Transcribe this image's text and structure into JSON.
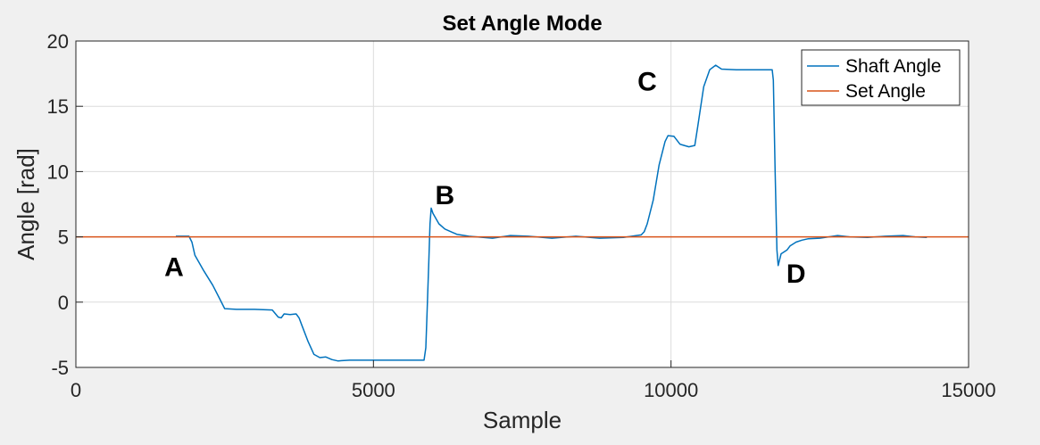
{
  "chart_data": {
    "type": "line",
    "title": "Set Angle Mode",
    "xlabel": "Sample",
    "ylabel": "Angle [rad]",
    "xlim": [
      0,
      15000
    ],
    "ylim": [
      -5,
      20
    ],
    "xticks": [
      0,
      5000,
      10000,
      15000
    ],
    "yticks": [
      -5,
      0,
      5,
      10,
      15,
      20
    ],
    "grid": true,
    "legend_position": "top-right",
    "series": [
      {
        "name": "Shaft Angle",
        "color": "#0072BD",
        "points": [
          [
            1680,
            5.05
          ],
          [
            1900,
            5.05
          ],
          [
            1950,
            4.6
          ],
          [
            2000,
            3.6
          ],
          [
            2150,
            2.4
          ],
          [
            2300,
            1.3
          ],
          [
            2400,
            0.4
          ],
          [
            2500,
            -0.5
          ],
          [
            2700,
            -0.55
          ],
          [
            3000,
            -0.55
          ],
          [
            3300,
            -0.6
          ],
          [
            3400,
            -1.15
          ],
          [
            3450,
            -1.2
          ],
          [
            3500,
            -0.9
          ],
          [
            3600,
            -0.95
          ],
          [
            3700,
            -0.9
          ],
          [
            3750,
            -1.2
          ],
          [
            3800,
            -1.8
          ],
          [
            3900,
            -3.0
          ],
          [
            4000,
            -4.0
          ],
          [
            4100,
            -4.25
          ],
          [
            4200,
            -4.2
          ],
          [
            4300,
            -4.4
          ],
          [
            4400,
            -4.5
          ],
          [
            4600,
            -4.45
          ],
          [
            4800,
            -4.45
          ],
          [
            5200,
            -4.45
          ],
          [
            5600,
            -4.45
          ],
          [
            5850,
            -4.45
          ],
          [
            5880,
            -3.5
          ],
          [
            5900,
            -1.0
          ],
          [
            5930,
            3.0
          ],
          [
            5950,
            6.0
          ],
          [
            5970,
            7.2
          ],
          [
            6000,
            6.8
          ],
          [
            6100,
            6.0
          ],
          [
            6200,
            5.6
          ],
          [
            6400,
            5.2
          ],
          [
            6600,
            5.05
          ],
          [
            7000,
            4.9
          ],
          [
            7300,
            5.1
          ],
          [
            7600,
            5.05
          ],
          [
            8000,
            4.9
          ],
          [
            8400,
            5.05
          ],
          [
            8800,
            4.9
          ],
          [
            9200,
            4.95
          ],
          [
            9500,
            5.15
          ],
          [
            9550,
            5.4
          ],
          [
            9600,
            6.0
          ],
          [
            9700,
            7.8
          ],
          [
            9800,
            10.5
          ],
          [
            9900,
            12.3
          ],
          [
            9950,
            12.75
          ],
          [
            10050,
            12.7
          ],
          [
            10150,
            12.1
          ],
          [
            10300,
            11.9
          ],
          [
            10400,
            12.0
          ],
          [
            10450,
            13.5
          ],
          [
            10550,
            16.5
          ],
          [
            10650,
            17.8
          ],
          [
            10750,
            18.15
          ],
          [
            10850,
            17.85
          ],
          [
            11100,
            17.8
          ],
          [
            11400,
            17.8
          ],
          [
            11700,
            17.8
          ],
          [
            11720,
            17.0
          ],
          [
            11750,
            10.0
          ],
          [
            11780,
            4.0
          ],
          [
            11800,
            2.8
          ],
          [
            11850,
            3.7
          ],
          [
            11950,
            4.0
          ],
          [
            12000,
            4.3
          ],
          [
            12100,
            4.6
          ],
          [
            12200,
            4.75
          ],
          [
            12300,
            4.85
          ],
          [
            12500,
            4.9
          ],
          [
            12800,
            5.1
          ],
          [
            13000,
            5.0
          ],
          [
            13300,
            4.95
          ],
          [
            13600,
            5.05
          ],
          [
            13900,
            5.1
          ],
          [
            14100,
            5.0
          ],
          [
            14300,
            4.95
          ]
        ]
      },
      {
        "name": "Set Angle",
        "color": "#D95319",
        "points": [
          [
            0,
            5
          ],
          [
            15000,
            5
          ]
        ]
      }
    ],
    "annotations": [
      {
        "text": "A",
        "x": 1650,
        "y": 2.0
      },
      {
        "text": "B",
        "x": 6200,
        "y": 7.5
      },
      {
        "text": "C",
        "x": 9600,
        "y": 16.2
      },
      {
        "text": "D",
        "x": 12100,
        "y": 1.5
      }
    ]
  }
}
